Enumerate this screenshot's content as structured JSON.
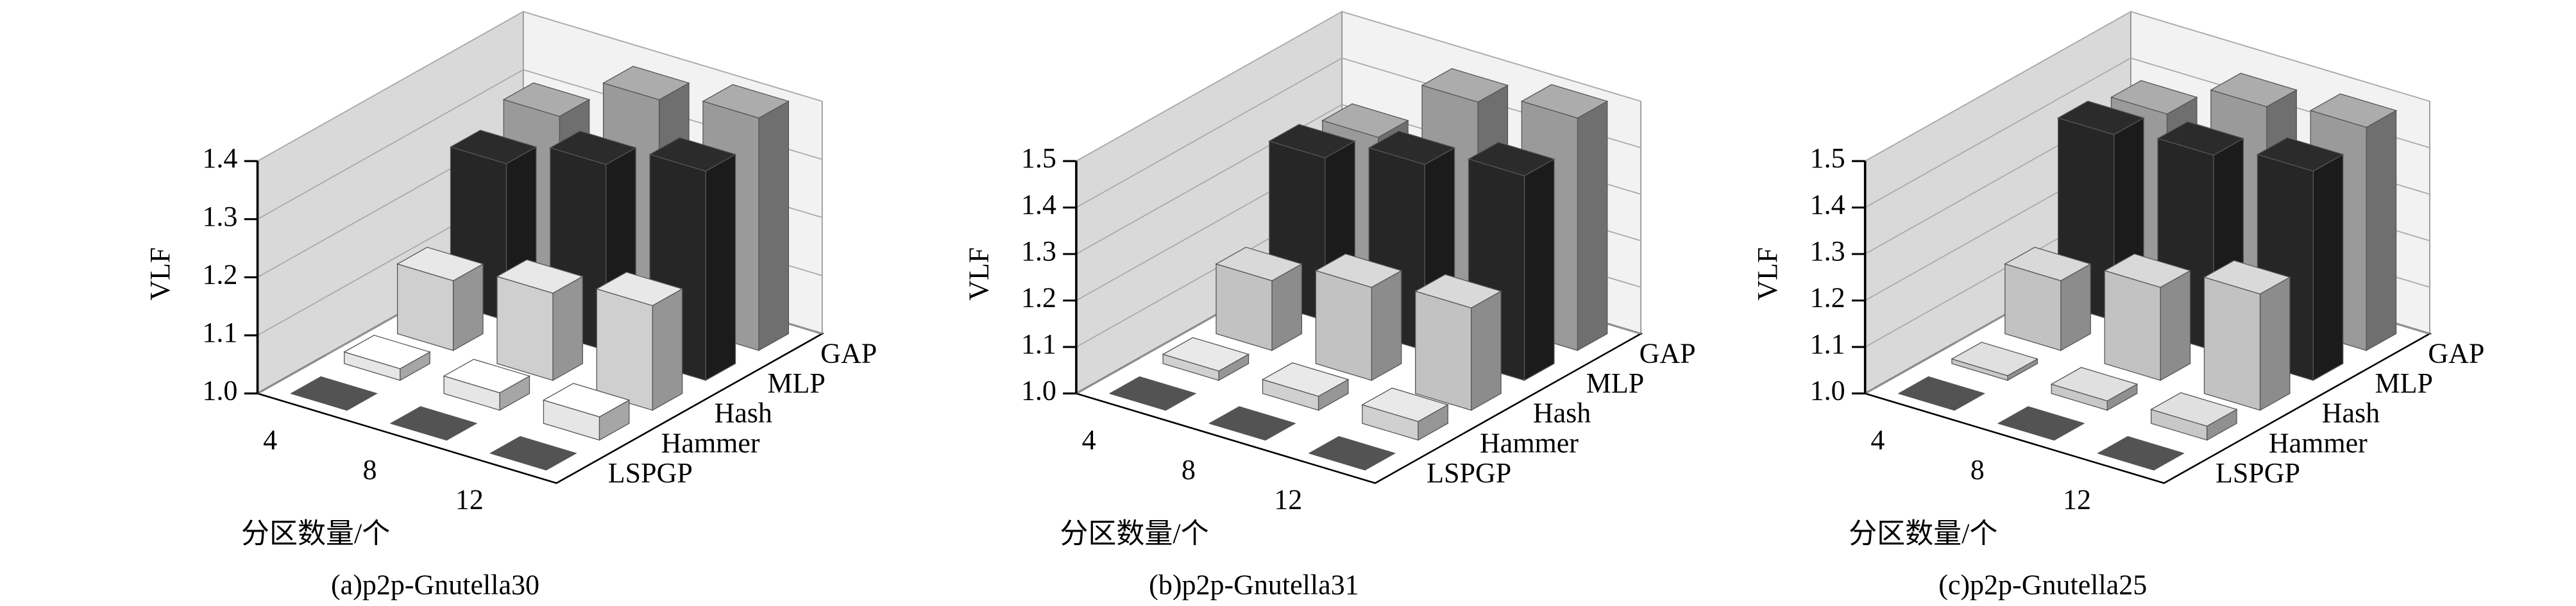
{
  "chart_data": [
    {
      "type": "bar3d",
      "title": "(a)p2p-Gnutella30",
      "xlabel": "分区数量/个",
      "ylabel": "VLF",
      "categories": [
        "4",
        "8",
        "12"
      ],
      "series": [
        {
          "name": "LSPGP",
          "color": "#4a4a4a",
          "values": [
            1.0,
            1.0,
            1.0
          ]
        },
        {
          "name": "Hammer",
          "color": "#e6e6e6",
          "values": [
            1.02,
            1.03,
            1.04
          ]
        },
        {
          "name": "Hash",
          "color": "#cfcfcf",
          "values": [
            1.12,
            1.15,
            1.18
          ]
        },
        {
          "name": "MLP",
          "color": "#262626",
          "values": [
            1.27,
            1.32,
            1.36
          ]
        },
        {
          "name": "GAP",
          "color": "#9a9a9a",
          "values": [
            1.3,
            1.38,
            1.4
          ]
        }
      ],
      "ylim": [
        1.0,
        1.4
      ],
      "yticks": [
        {
          "value": 1.0,
          "label": "1.0"
        },
        1.1,
        1.2,
        1.3,
        1.4
      ]
    },
    {
      "type": "bar3d",
      "title": "(b)p2p-Gnutella31",
      "xlabel": "分区数量/个",
      "ylabel": "VLF",
      "categories": [
        "4",
        "8",
        "12"
      ],
      "series": [
        {
          "name": "LSPGP",
          "color": "#4a4a4a",
          "values": [
            1.0,
            1.0,
            1.0
          ]
        },
        {
          "name": "Hammer",
          "color": "#d0d0d0",
          "values": [
            1.02,
            1.03,
            1.04
          ]
        },
        {
          "name": "Hash",
          "color": "#c2c2c2",
          "values": [
            1.15,
            1.2,
            1.22
          ]
        },
        {
          "name": "MLP",
          "color": "#262626",
          "values": [
            1.35,
            1.4,
            1.44
          ]
        },
        {
          "name": "GAP",
          "color": "#9a9a9a",
          "values": [
            1.33,
            1.47,
            1.5
          ]
        }
      ],
      "ylim": [
        1.0,
        1.5
      ],
      "yticks": [
        {
          "value": 1.0,
          "label": "1.0"
        },
        1.1,
        1.2,
        1.3,
        1.4,
        1.5
      ]
    },
    {
      "type": "bar3d",
      "title": "(c)p2p-Gnutella25",
      "xlabel": "分区数量/个",
      "ylabel": "VLF",
      "categories": [
        "4",
        "8",
        "12"
      ],
      "series": [
        {
          "name": "LSPGP",
          "color": "#4a4a4a",
          "values": [
            1.0,
            1.0,
            1.0
          ]
        },
        {
          "name": "Hammer",
          "color": "#c8c8c8",
          "values": [
            1.01,
            1.02,
            1.03
          ]
        },
        {
          "name": "Hash",
          "color": "#c2c2c2",
          "values": [
            1.15,
            1.2,
            1.25
          ]
        },
        {
          "name": "MLP",
          "color": "#262626",
          "values": [
            1.4,
            1.42,
            1.45
          ]
        },
        {
          "name": "GAP",
          "color": "#9a9a9a",
          "values": [
            1.38,
            1.46,
            1.48
          ]
        }
      ],
      "ylim": [
        1.0,
        1.5
      ],
      "yticks": [
        {
          "value": 1.0,
          "label": "1.0"
        },
        1.1,
        1.2,
        1.3,
        1.4,
        1.5
      ]
    }
  ]
}
